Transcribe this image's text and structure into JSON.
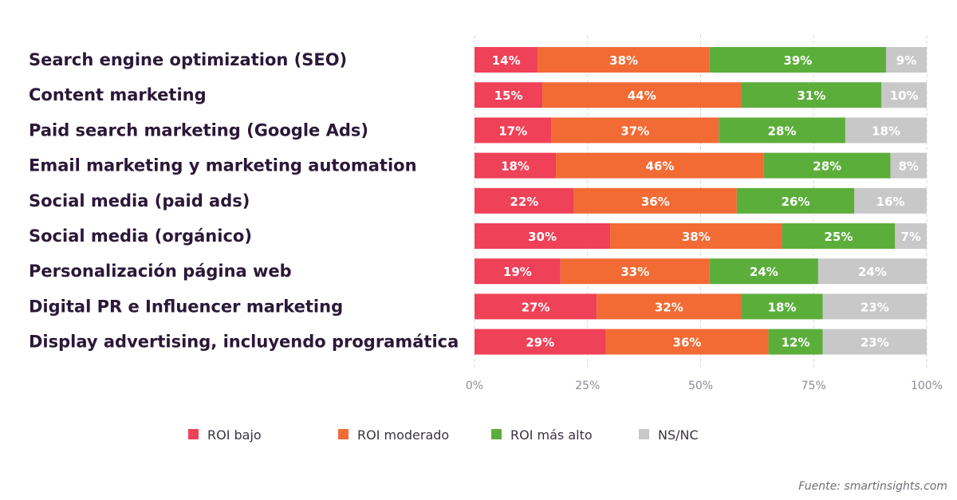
{
  "chart_data": {
    "type": "bar",
    "orientation": "horizontal",
    "stacked": true,
    "normalized": true,
    "categories": [
      "Search engine optimization (SEO)",
      "Content marketing",
      "Paid search marketing (Google Ads)",
      "Email marketing y marketing automation",
      "Social media (paid ads)",
      "Social media (orgánico)",
      "Personalización página web",
      "Digital PR e Influencer marketing",
      "Display advertising, incluyendo programática"
    ],
    "series": [
      {
        "name": "ROI bajo",
        "color": "#ef4157",
        "values": [
          14,
          15,
          17,
          18,
          22,
          30,
          19,
          27,
          29
        ]
      },
      {
        "name": "ROI moderado",
        "color": "#f26b35",
        "values": [
          38,
          44,
          37,
          46,
          36,
          38,
          33,
          32,
          36
        ]
      },
      {
        "name": "ROI más alto",
        "color": "#5cae3b",
        "values": [
          39,
          31,
          28,
          28,
          26,
          25,
          24,
          18,
          12
        ]
      },
      {
        "name": "NS/NC",
        "color": "#c8c8c8",
        "values": [
          9,
          10,
          18,
          8,
          16,
          7,
          24,
          23,
          23
        ]
      }
    ],
    "xlim": [
      0,
      100
    ],
    "x_ticks": [
      "0%",
      "25%",
      "50%",
      "75%",
      "100%"
    ],
    "value_suffix": "%",
    "grid": true,
    "legend_position": "bottom",
    "xlabel": "",
    "ylabel": ""
  },
  "source": "Fuente: smartinsights.com"
}
